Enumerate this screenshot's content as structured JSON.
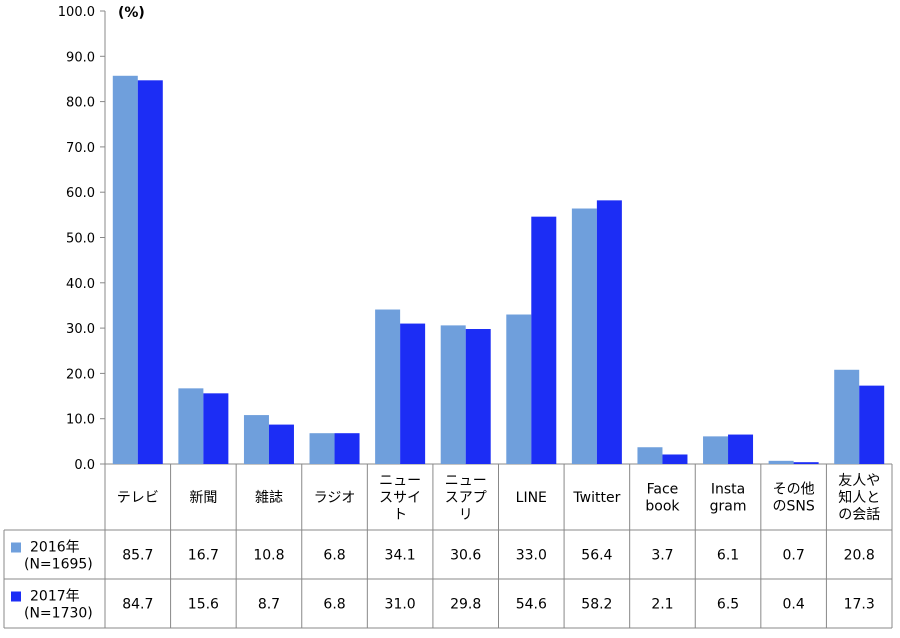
{
  "chart_data": {
    "type": "bar",
    "unit_label": "(%)",
    "ylim": [
      0,
      100
    ],
    "yticks": [
      "0.0",
      "10.0",
      "20.0",
      "30.0",
      "40.0",
      "50.0",
      "60.0",
      "70.0",
      "80.0",
      "90.0",
      "100.0"
    ],
    "categories": [
      [
        "テレビ"
      ],
      [
        "新聞"
      ],
      [
        "雑誌"
      ],
      [
        "ラジオ"
      ],
      [
        "ニュー",
        "スサイ",
        "ト"
      ],
      [
        "ニュー",
        "スアプ",
        "リ"
      ],
      [
        "LINE"
      ],
      [
        "Twitter"
      ],
      [
        "Face",
        "book"
      ],
      [
        "Insta",
        "gram"
      ],
      [
        "その他",
        "のSNS"
      ],
      [
        "友人や",
        "知人と",
        "の会話"
      ]
    ],
    "series": [
      {
        "name": [
          "2016年",
          "(N=1695)"
        ],
        "color": "#6f9fdc",
        "values": [
          85.7,
          16.7,
          10.8,
          6.8,
          34.1,
          30.6,
          33.0,
          56.4,
          3.7,
          6.1,
          0.7,
          20.8
        ],
        "labels": [
          "85.7",
          "16.7",
          "10.8",
          "6.8",
          "34.1",
          "30.6",
          "33.0",
          "56.4",
          "3.7",
          "6.1",
          "0.7",
          "20.8"
        ]
      },
      {
        "name": [
          "2017年",
          "(N=1730)"
        ],
        "color": "#1c2df5",
        "values": [
          84.7,
          15.6,
          8.7,
          6.8,
          31.0,
          29.8,
          54.6,
          58.2,
          2.1,
          6.5,
          0.4,
          17.3
        ],
        "labels": [
          "84.7",
          "15.6",
          "8.7",
          "6.8",
          "31.0",
          "29.8",
          "54.6",
          "58.2",
          "2.1",
          "6.5",
          "0.4",
          "17.3"
        ]
      }
    ]
  }
}
